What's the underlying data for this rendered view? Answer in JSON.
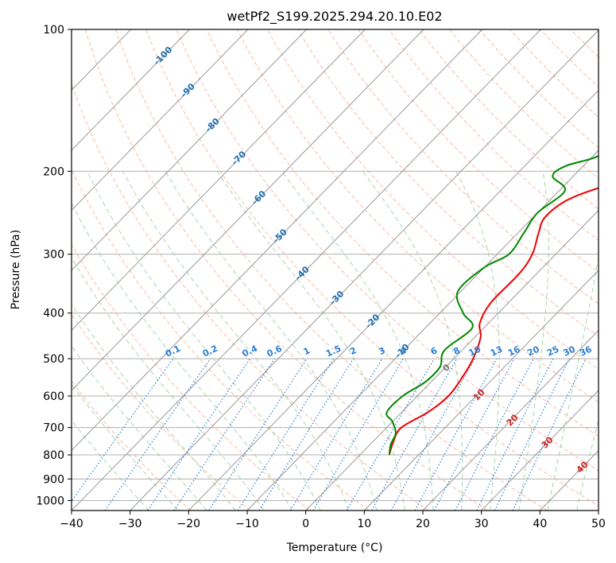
{
  "chart_data": {
    "type": "line",
    "title": "wetPf2_S199.2025.294.20.10.E02",
    "xlabel": "Temperature (°C)",
    "ylabel": "Pressure (hPa)",
    "xlim": [
      -40,
      50
    ],
    "ylim": [
      1050,
      100
    ],
    "y_scale": "log",
    "x_ticks": [
      -40,
      -30,
      -20,
      -10,
      0,
      10,
      20,
      30,
      40,
      50
    ],
    "y_ticks": [
      100,
      200,
      300,
      400,
      500,
      600,
      700,
      800,
      900,
      1000
    ],
    "grid": true,
    "skew_isotherm_labels": [
      "-100",
      "-90",
      "-80",
      "-70",
      "-60",
      "-50",
      "-40",
      "-30",
      "-20",
      "-10"
    ],
    "mixing_ratio_labels": [
      "0.1",
      "0.2",
      "0.4",
      "0.6",
      "1",
      "1.5",
      "2",
      "3",
      "4",
      "6",
      "8",
      "10",
      "13",
      "16",
      "20",
      "25",
      "30",
      "36"
    ],
    "moist_adiabat_labels": [
      "0",
      "10",
      "20",
      "30",
      "40"
    ],
    "colors": {
      "temperature": "#ee0000",
      "dewpoint": "#008800",
      "isotherm": "#999999",
      "dry_adiabat": "#f4a080",
      "moist_adiabat": "#8cc890",
      "mixing_ratio": "#2a7fd4",
      "isotherm_label": "#1f6fb0",
      "moist_label": "#cc2222"
    },
    "series": [
      {
        "name": "Temperature",
        "points": [
          [
            5,
            800
          ],
          [
            3.5,
            750
          ],
          [
            2.5,
            700
          ],
          [
            4.5,
            650
          ],
          [
            5.3,
            600
          ],
          [
            4.6,
            550
          ],
          [
            3.3,
            500
          ],
          [
            1,
            450
          ],
          [
            -1.5,
            420
          ],
          [
            -3,
            380
          ],
          [
            -3,
            330
          ],
          [
            -4,
            300
          ],
          [
            -6.5,
            270
          ],
          [
            -8,
            250
          ],
          [
            -7,
            230
          ],
          [
            -3,
            215
          ],
          [
            4,
            200
          ],
          [
            7,
            185
          ],
          [
            10,
            165
          ],
          [
            13,
            150
          ],
          [
            15,
            140
          ],
          [
            16.5,
            130
          ],
          [
            18,
            125
          ],
          [
            22,
            115
          ],
          [
            27,
            105
          ],
          [
            30,
            100
          ]
        ]
      },
      {
        "name": "Dewpoint",
        "points": [
          [
            5,
            800
          ],
          [
            3.5,
            760
          ],
          [
            2.5,
            720
          ],
          [
            0,
            680
          ],
          [
            -2.5,
            650
          ],
          [
            -2.5,
            600
          ],
          [
            -1,
            560
          ],
          [
            -1,
            520
          ],
          [
            -3,
            480
          ],
          [
            -2,
            430
          ],
          [
            -6,
            400
          ],
          [
            -10.5,
            360
          ],
          [
            -10,
            320
          ],
          [
            -8,
            300
          ],
          [
            -9,
            270
          ],
          [
            -10,
            245
          ],
          [
            -9,
            220
          ],
          [
            -13.5,
            205
          ],
          [
            -13,
            195
          ],
          [
            -9,
            185
          ],
          [
            -10,
            170
          ],
          [
            -10,
            160
          ],
          [
            -8,
            150
          ],
          [
            -5,
            135
          ],
          [
            -3,
            125
          ],
          [
            -1,
            115
          ],
          [
            1,
            105
          ],
          [
            2,
            100
          ]
        ]
      }
    ]
  }
}
